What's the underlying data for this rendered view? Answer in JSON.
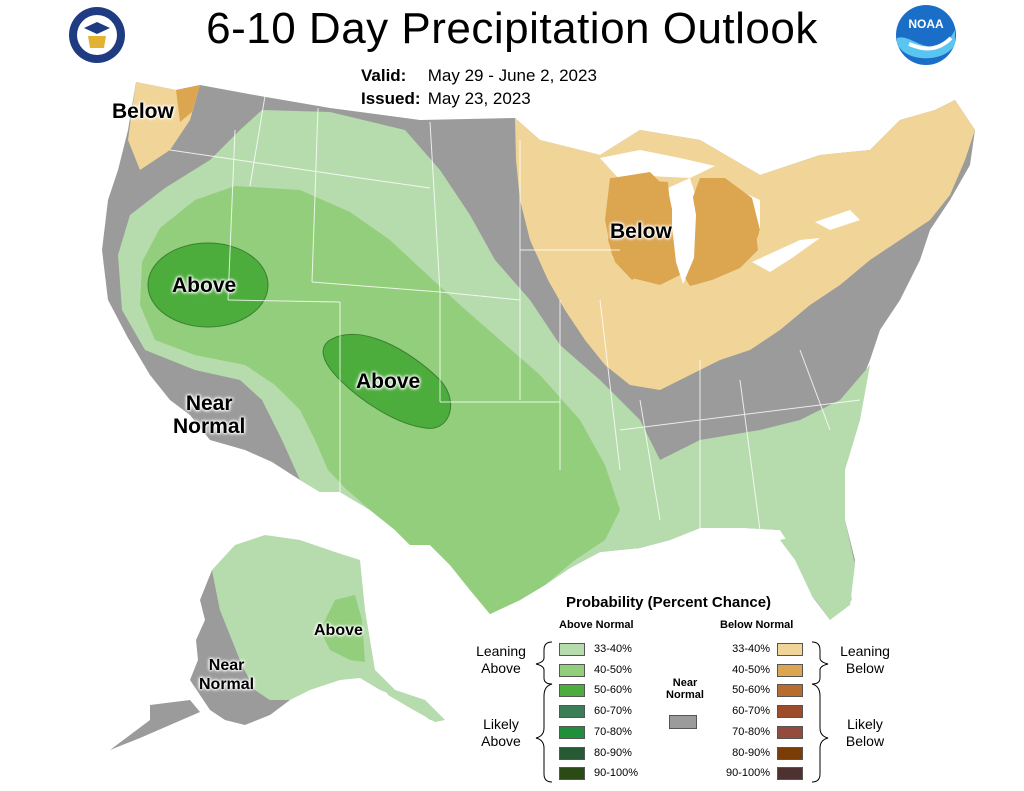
{
  "title": "6-10 Day Precipitation Outlook",
  "valid_label": "Valid:",
  "valid_value": "May 29 - June 2, 2023",
  "issued_label": "Issued:",
  "issued_value": "May 23, 2023",
  "logos": {
    "left": "department-of-commerce-seal",
    "right": "noaa-logo",
    "right_text": "NOAA"
  },
  "map_labels": {
    "nw_below": "Below",
    "midwest_below": "Below",
    "west_above": "Above",
    "colorado_above": "Above",
    "near_normal_line1": "Near",
    "near_normal_line2": "Normal",
    "alaska_above": "Above",
    "alaska_near_line1": "Near",
    "alaska_near_line2": "Normal"
  },
  "colors": {
    "above_33_40": "#b6dcae",
    "above_40_50": "#93ce7c",
    "above_50_60": "#4cad3c",
    "above_60_70": "#3b7d56",
    "above_70_80": "#1f8f3a",
    "above_80_90": "#265a35",
    "above_90_100": "#2a4a16",
    "below_33_40": "#f1d598",
    "below_40_50": "#dca550",
    "below_50_60": "#b86c2e",
    "below_60_70": "#9c4c2a",
    "below_70_80": "#944a3c",
    "below_80_90": "#7a3d05",
    "below_90_100": "#4e3232",
    "near_normal": "#9b9b9b",
    "water": "#ffffff",
    "border": "#ffffff"
  },
  "legend": {
    "title": "Probability (Percent Chance)",
    "above_header": "Above Normal",
    "below_header": "Below Normal",
    "near_header_line1": "Near",
    "near_header_line2": "Normal",
    "leaning_above_line1": "Leaning",
    "leaning_above_line2": "Above",
    "likely_above_line1": "Likely",
    "likely_above_line2": "Above",
    "leaning_below_line1": "Leaning",
    "leaning_below_line2": "Below",
    "likely_below_line1": "Likely",
    "likely_below_line2": "Below",
    "above_items": [
      "33-40%",
      "40-50%",
      "50-60%",
      "60-70%",
      "70-80%",
      "80-90%",
      "90-100%"
    ],
    "below_items": [
      "33-40%",
      "40-50%",
      "50-60%",
      "60-70%",
      "70-80%",
      "80-90%",
      "90-100%"
    ]
  }
}
